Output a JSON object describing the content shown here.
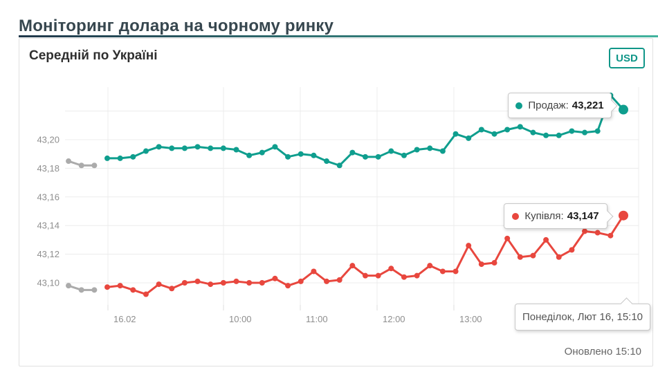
{
  "page": {
    "title": "Моніторинг долара на чорному ринку"
  },
  "card": {
    "title": "Середній по Україні",
    "currency_button_label": "USD",
    "updated_text": "Оновлено 15:10"
  },
  "tooltips": {
    "sell": {
      "label": "Продаж:",
      "value": "43,221"
    },
    "buy": {
      "label": "Купівля:",
      "value": "43,147"
    },
    "date": {
      "text": "Понеділок, Лют 16, 15:10"
    }
  },
  "colors": {
    "sell": "#0f9e8e",
    "buy": "#e8473e",
    "previous": "#ababab",
    "grid": "#ececec",
    "axis_text": "#8e8e8e",
    "accent_teal": "#0f9688",
    "title": "#37474f"
  },
  "chart_data": {
    "type": "line",
    "title": "Середній по Україні",
    "currency": "USD",
    "ylabel": "",
    "xlabel": "",
    "ylim": [
      43.08,
      43.24
    ],
    "grid": true,
    "y_gridline_values": [
      43.22,
      43.2,
      43.18,
      43.16,
      43.14,
      43.12,
      43.1
    ],
    "y_tick_labels": [
      "43,20",
      "43,18",
      "43,16",
      "43,14",
      "43,12",
      "43,10"
    ],
    "y_tick_values": [
      43.2,
      43.18,
      43.16,
      43.14,
      43.12,
      43.1
    ],
    "x_labels": [
      "16.02",
      "10:00",
      "11:00",
      "12:00",
      "13:00"
    ],
    "point_interval_minutes": 10,
    "last_point_time": "15:10",
    "series": [
      {
        "name": "Продаж",
        "color": "#0f9e8e",
        "last_value": 43.221,
        "prev_values": [
          43.185,
          43.182,
          43.182
        ],
        "values": [
          43.187,
          43.187,
          43.188,
          43.192,
          43.195,
          43.194,
          43.194,
          43.195,
          43.194,
          43.194,
          43.193,
          43.189,
          43.191,
          43.195,
          43.188,
          43.19,
          43.189,
          43.185,
          43.182,
          43.191,
          43.188,
          43.188,
          43.192,
          43.189,
          43.193,
          43.194,
          43.192,
          43.204,
          43.201,
          43.207,
          43.204,
          43.207,
          43.209,
          43.205,
          43.203,
          43.203,
          43.206,
          43.205,
          43.206,
          43.231,
          43.221
        ]
      },
      {
        "name": "Купівля",
        "color": "#e8473e",
        "last_value": 43.147,
        "prev_values": [
          43.098,
          43.095,
          43.095
        ],
        "values": [
          43.097,
          43.098,
          43.095,
          43.092,
          43.099,
          43.096,
          43.1,
          43.101,
          43.099,
          43.1,
          43.101,
          43.1,
          43.1,
          43.103,
          43.098,
          43.101,
          43.108,
          43.101,
          43.102,
          43.112,
          43.105,
          43.105,
          43.11,
          43.104,
          43.105,
          43.112,
          43.108,
          43.108,
          43.126,
          43.113,
          43.114,
          43.131,
          43.118,
          43.119,
          43.13,
          43.118,
          43.123,
          43.136,
          43.135,
          43.133,
          43.147
        ]
      }
    ],
    "previous_series_color": "#ababab",
    "legend_position": "floating-tooltips-right"
  }
}
